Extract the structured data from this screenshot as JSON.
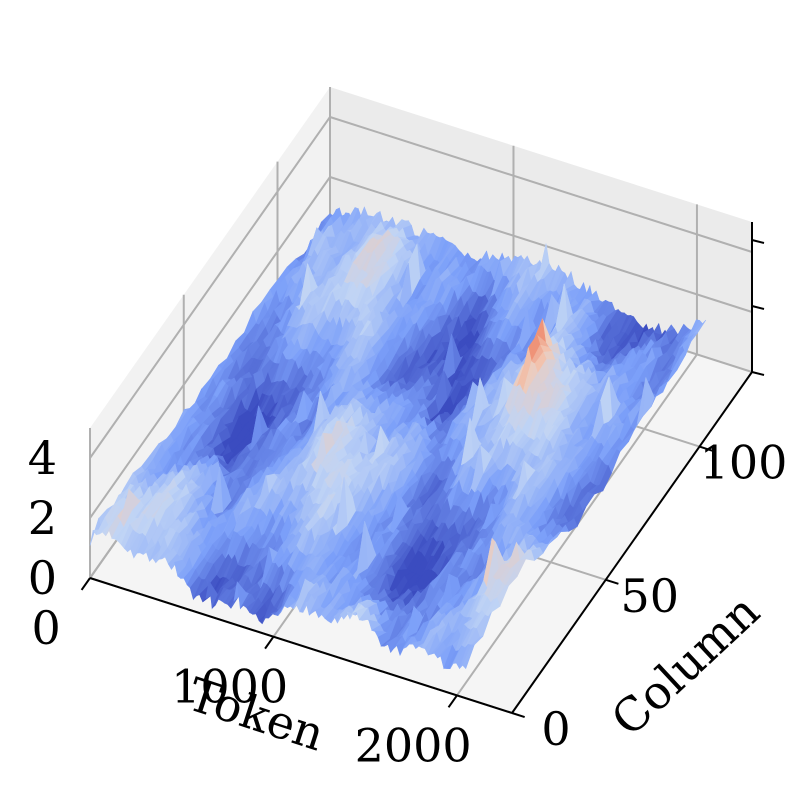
{
  "chart_data": {
    "type": "surface3d",
    "title": "",
    "colormap": "coolwarm",
    "colormap_stops": [
      "#3b4cc0",
      "#7b9ff9",
      "#c0d4f5",
      "#f2cbb7",
      "#ee8468",
      "#b40426"
    ],
    "pane_colors": {
      "left": "#f2f2f2",
      "right": "#ebebeb",
      "floor": "#f5f5f5",
      "grid": "#b0b0b0"
    },
    "xlabel": "Token",
    "ylabel": "Column",
    "zlabel": "",
    "xlim": [
      0,
      2300
    ],
    "ylim": [
      0,
      128
    ],
    "zlim": [
      0,
      5
    ],
    "x_ticks": [
      0,
      1000,
      2000
    ],
    "y_ticks": [
      0,
      50,
      100
    ],
    "z_ticks": [
      0,
      2,
      4
    ],
    "x_tick_labels": [
      "0",
      "1000",
      "2000"
    ],
    "y_tick_labels": [
      "0",
      "50",
      "100"
    ],
    "z_tick_labels": [
      "0",
      "2",
      "4"
    ],
    "grid": true,
    "surface": {
      "x_range": [
        0,
        2048
      ],
      "y_range": [
        0,
        128
      ],
      "base_value": 1.0,
      "peak_value": 3.5,
      "peak_location": {
        "token": 1500,
        "column": 90
      }
    }
  }
}
